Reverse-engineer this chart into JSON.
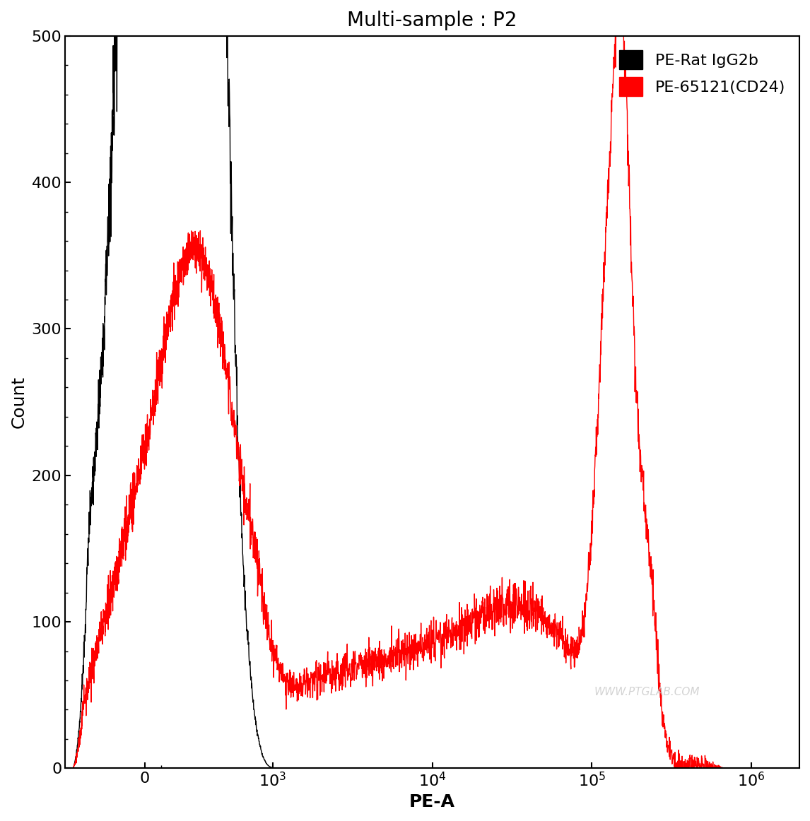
{
  "title": "Multi-sample : P2",
  "xlabel": "PE-A",
  "ylabel": "Count",
  "ylim": [
    0,
    500
  ],
  "xlim_left": -500,
  "xlim_right": 2000000,
  "linthresh": 500,
  "linscale": 0.45,
  "legend": [
    "PE-Rat IgG2b",
    "PE-65121(CD24)"
  ],
  "legend_colors": [
    "#000000",
    "#ff0000"
  ],
  "watermark": "WWW.PTGLAB.COM",
  "title_fontsize": 20,
  "label_fontsize": 18,
  "tick_fontsize": 16
}
